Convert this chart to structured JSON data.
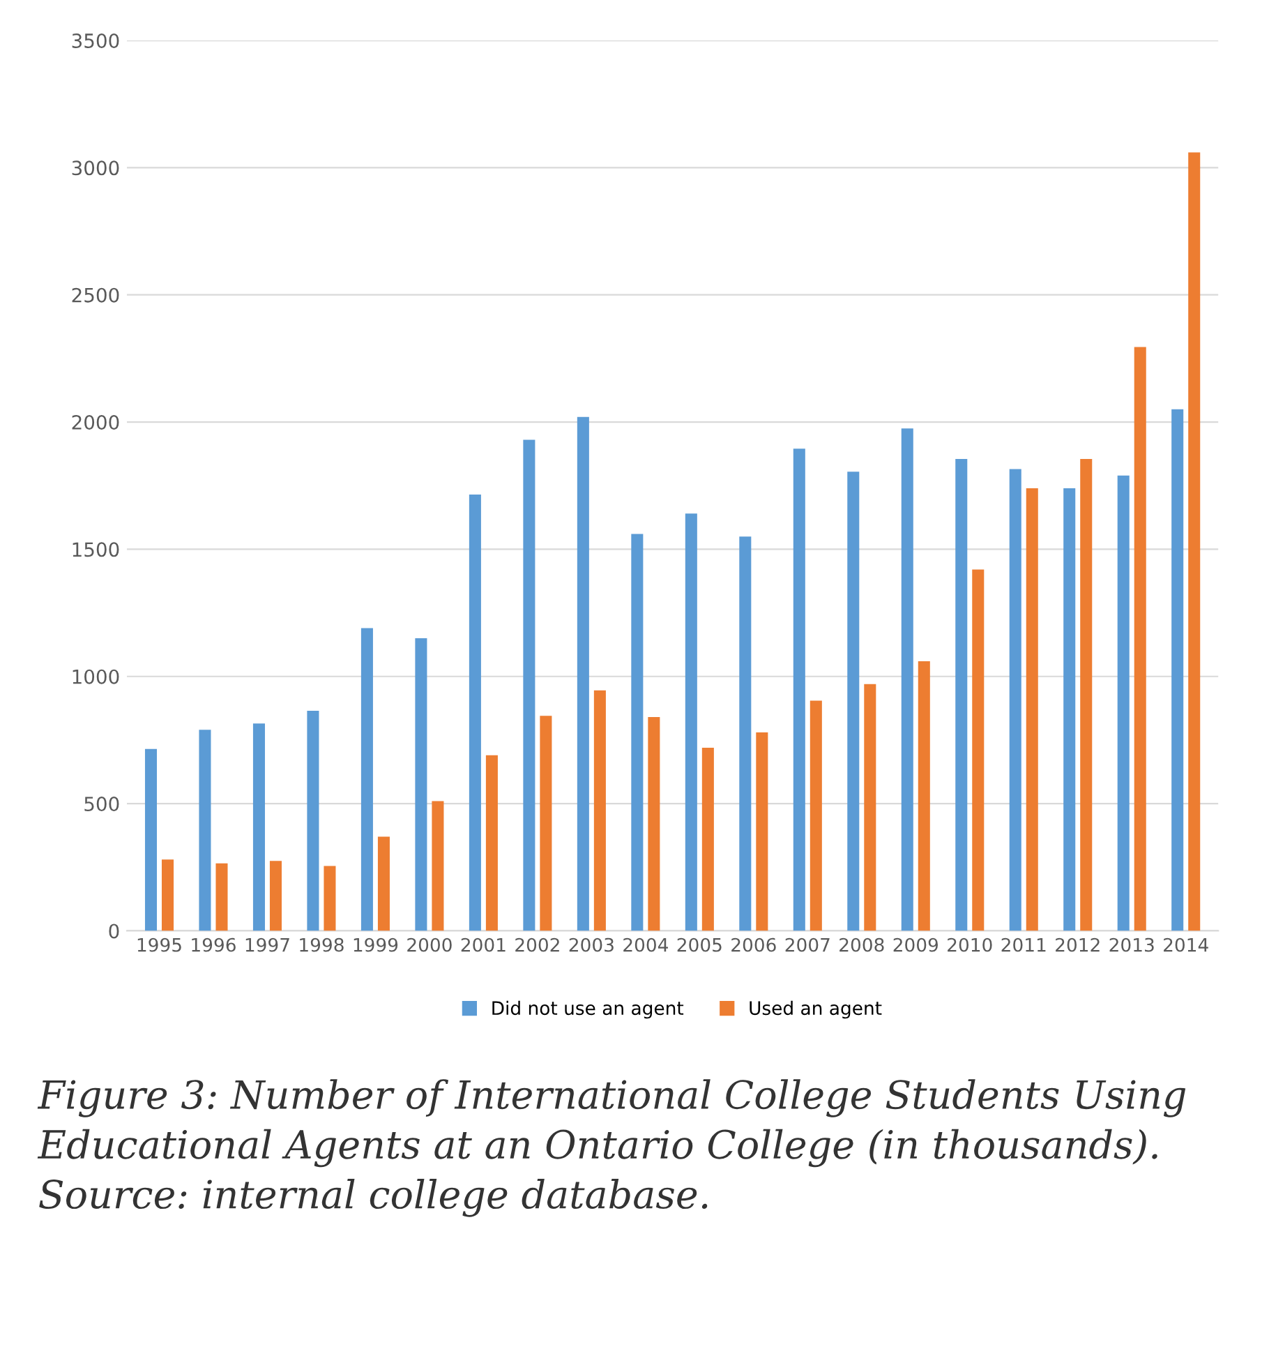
{
  "chart_data": {
    "type": "bar",
    "categories": [
      "1995",
      "1996",
      "1997",
      "1998",
      "1999",
      "2000",
      "2001",
      "2002",
      "2003",
      "2004",
      "2005",
      "2006",
      "2007",
      "2008",
      "2009",
      "2010",
      "2011",
      "2012",
      "2013",
      "2014"
    ],
    "series": [
      {
        "name": "Did not use an agent",
        "color": "#5b9bd5",
        "values": [
          715,
          790,
          815,
          865,
          1190,
          1150,
          1715,
          1930,
          2020,
          1560,
          1640,
          1550,
          1895,
          1805,
          1975,
          1855,
          1815,
          1740,
          1790,
          2050
        ]
      },
      {
        "name": "Used an agent",
        "color": "#ed7d31",
        "values": [
          280,
          265,
          275,
          255,
          370,
          510,
          690,
          845,
          945,
          840,
          720,
          780,
          905,
          970,
          1060,
          1420,
          1740,
          1855,
          2295,
          3060
        ]
      }
    ],
    "ylim": [
      0,
      3500
    ],
    "yticks": [
      0,
      500,
      1000,
      1500,
      2000,
      2500,
      3000,
      3500
    ],
    "grid": "y",
    "legend": "bottom",
    "annotations": [
      "Figure 3: Number of International College Students Using Educational Agents at an Ontario College (in thousands). Source: internal college database."
    ]
  }
}
